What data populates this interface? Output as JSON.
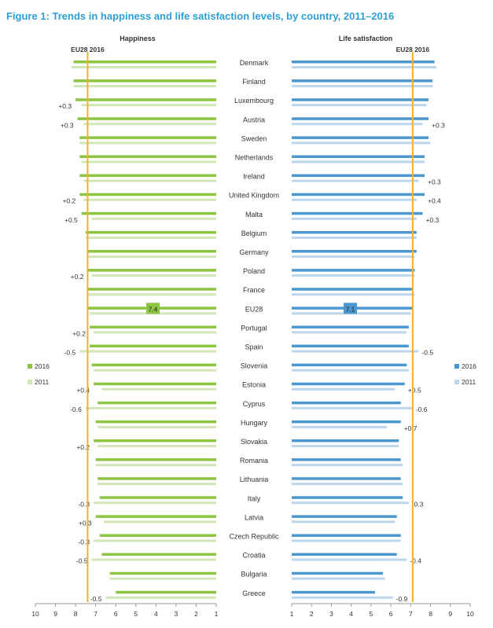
{
  "chart_data": {
    "type": "bar",
    "title": "Figure 1: Trends in happiness and life satisfaction levels, by country, 2011–2016",
    "panels": [
      {
        "name": "Happiness",
        "key": "h",
        "xlim": [
          10,
          1
        ],
        "ticks": [
          10,
          9,
          8,
          7,
          6,
          5,
          4,
          3,
          2,
          1
        ],
        "reference_label": "EU28 2016",
        "reference_value": 7.4,
        "eu_label": "7.4"
      },
      {
        "name": "Life satisfaction",
        "key": "ls",
        "xlim": [
          1,
          10
        ],
        "ticks": [
          1,
          2,
          3,
          4,
          5,
          6,
          7,
          8,
          9,
          10
        ],
        "reference_label": "EU28 2016",
        "reference_value": 7.1,
        "eu_label": "7.1"
      }
    ],
    "legend": {
      "left": [
        "2016",
        "2011"
      ],
      "right": [
        "2016",
        "2011"
      ],
      "placement": "middle-sides"
    },
    "countries": [
      {
        "name": "Denmark",
        "h2016": 8.1,
        "h2011": 8.2,
        "ls2016": 8.2,
        "ls2011": 8.3,
        "hc": "",
        "lc": ""
      },
      {
        "name": "Finland",
        "h2016": 8.1,
        "h2011": 8.1,
        "ls2016": 8.1,
        "ls2011": 8.1,
        "hc": "",
        "lc": ""
      },
      {
        "name": "Luxembourg",
        "h2016": 8.0,
        "h2011": 7.7,
        "ls2016": 7.9,
        "ls2011": 7.8,
        "hc": "+0.3",
        "lc": ""
      },
      {
        "name": "Austria",
        "h2016": 7.9,
        "h2011": 7.6,
        "ls2016": 7.9,
        "ls2011": 7.6,
        "hc": "+0.3",
        "lc": "+0.3"
      },
      {
        "name": "Sweden",
        "h2016": 7.8,
        "h2011": 7.8,
        "ls2016": 7.9,
        "ls2011": 8.0,
        "hc": "",
        "lc": ""
      },
      {
        "name": "Netherlands",
        "h2016": 7.8,
        "h2011": 7.7,
        "ls2016": 7.7,
        "ls2011": 7.7,
        "hc": "",
        "lc": ""
      },
      {
        "name": "Ireland",
        "h2016": 7.8,
        "h2011": 7.6,
        "ls2016": 7.7,
        "ls2011": 7.4,
        "hc": "",
        "lc": "+0.3"
      },
      {
        "name": "United Kingdom",
        "h2016": 7.8,
        "h2011": 7.6,
        "ls2016": 7.7,
        "ls2011": 7.3,
        "hc": "+0.2",
        "lc": "+0.4"
      },
      {
        "name": "Malta",
        "h2016": 7.7,
        "h2011": 7.2,
        "ls2016": 7.6,
        "ls2011": 7.3,
        "hc": "+0.5",
        "lc": "+0.3"
      },
      {
        "name": "Belgium",
        "h2016": 7.5,
        "h2011": 7.5,
        "ls2016": 7.3,
        "ls2011": 7.3,
        "hc": "",
        "lc": ""
      },
      {
        "name": "Germany",
        "h2016": 7.4,
        "h2011": 7.4,
        "ls2016": 7.3,
        "ls2011": 7.2,
        "hc": "",
        "lc": ""
      },
      {
        "name": "Poland",
        "h2016": 7.4,
        "h2011": 7.2,
        "ls2016": 7.2,
        "ls2011": 7.2,
        "hc": "+0.2",
        "lc": ""
      },
      {
        "name": "France",
        "h2016": 7.4,
        "h2011": 7.4,
        "ls2016": 7.1,
        "ls2011": 7.2,
        "hc": "",
        "lc": ""
      },
      {
        "name": "EU28",
        "h2016": 7.4,
        "h2011": 7.3,
        "ls2016": 7.1,
        "ls2011": 7.0,
        "hc": "",
        "lc": ""
      },
      {
        "name": "Portugal",
        "h2016": 7.3,
        "h2011": 7.1,
        "ls2016": 6.9,
        "ls2011": 6.8,
        "hc": "+0.2",
        "lc": ""
      },
      {
        "name": "Spain",
        "h2016": 7.3,
        "h2011": 7.8,
        "ls2016": 6.9,
        "ls2011": 7.4,
        "hc": "-0.5",
        "lc": "-0.5"
      },
      {
        "name": "Slovenia",
        "h2016": 7.2,
        "h2011": 7.1,
        "ls2016": 6.8,
        "ls2011": 6.9,
        "hc": "",
        "lc": ""
      },
      {
        "name": "Estonia",
        "h2016": 7.1,
        "h2011": 6.7,
        "ls2016": 6.7,
        "ls2011": 6.2,
        "hc": "+0.4",
        "lc": "+0.5"
      },
      {
        "name": "Cyprus",
        "h2016": 6.9,
        "h2011": 7.5,
        "ls2016": 6.5,
        "ls2011": 7.1,
        "hc": "-0.6",
        "lc": "-0.6"
      },
      {
        "name": "Hungary",
        "h2016": 7.0,
        "h2011": 6.9,
        "ls2016": 6.5,
        "ls2011": 5.8,
        "hc": "",
        "lc": "+0.7"
      },
      {
        "name": "Slovakia",
        "h2016": 7.1,
        "h2011": 6.9,
        "ls2016": 6.4,
        "ls2011": 6.4,
        "hc": "+0.2",
        "lc": ""
      },
      {
        "name": "Romania",
        "h2016": 7.0,
        "h2011": 7.0,
        "ls2016": 6.5,
        "ls2011": 6.6,
        "hc": "",
        "lc": ""
      },
      {
        "name": "Lithuania",
        "h2016": 6.9,
        "h2011": 6.9,
        "ls2016": 6.5,
        "ls2011": 6.6,
        "hc": "",
        "lc": ""
      },
      {
        "name": "Italy",
        "h2016": 6.8,
        "h2011": 7.1,
        "ls2016": 6.6,
        "ls2011": 6.9,
        "hc": "-0.3",
        "lc": "-0.3"
      },
      {
        "name": "Latvia",
        "h2016": 7.0,
        "h2011": 6.6,
        "ls2016": 6.3,
        "ls2011": 6.2,
        "hc": "+0.3",
        "lc": ""
      },
      {
        "name": "Czech Republic",
        "h2016": 6.8,
        "h2011": 7.1,
        "ls2016": 6.5,
        "ls2011": 6.5,
        "hc": "-0.3",
        "lc": ""
      },
      {
        "name": "Croatia",
        "h2016": 6.7,
        "h2011": 7.2,
        "ls2016": 6.3,
        "ls2011": 6.8,
        "hc": "-0.5",
        "lc": "-0.4"
      },
      {
        "name": "Bulgaria",
        "h2016": 6.3,
        "h2011": 6.3,
        "ls2016": 5.6,
        "ls2011": 5.7,
        "hc": "",
        "lc": ""
      },
      {
        "name": "Greece",
        "h2016": 6.0,
        "h2011": 6.5,
        "ls2016": 5.2,
        "ls2011": 6.1,
        "hc": "-0.5",
        "lc": "-0.9"
      }
    ],
    "colors": {
      "h2016": "#8cc540",
      "h2011": "#d3e6b8",
      "ls2016": "#4a98cf",
      "ls2011": "#bcd6ec",
      "reference": "#f4b223",
      "title": "#2d9fd3"
    }
  }
}
